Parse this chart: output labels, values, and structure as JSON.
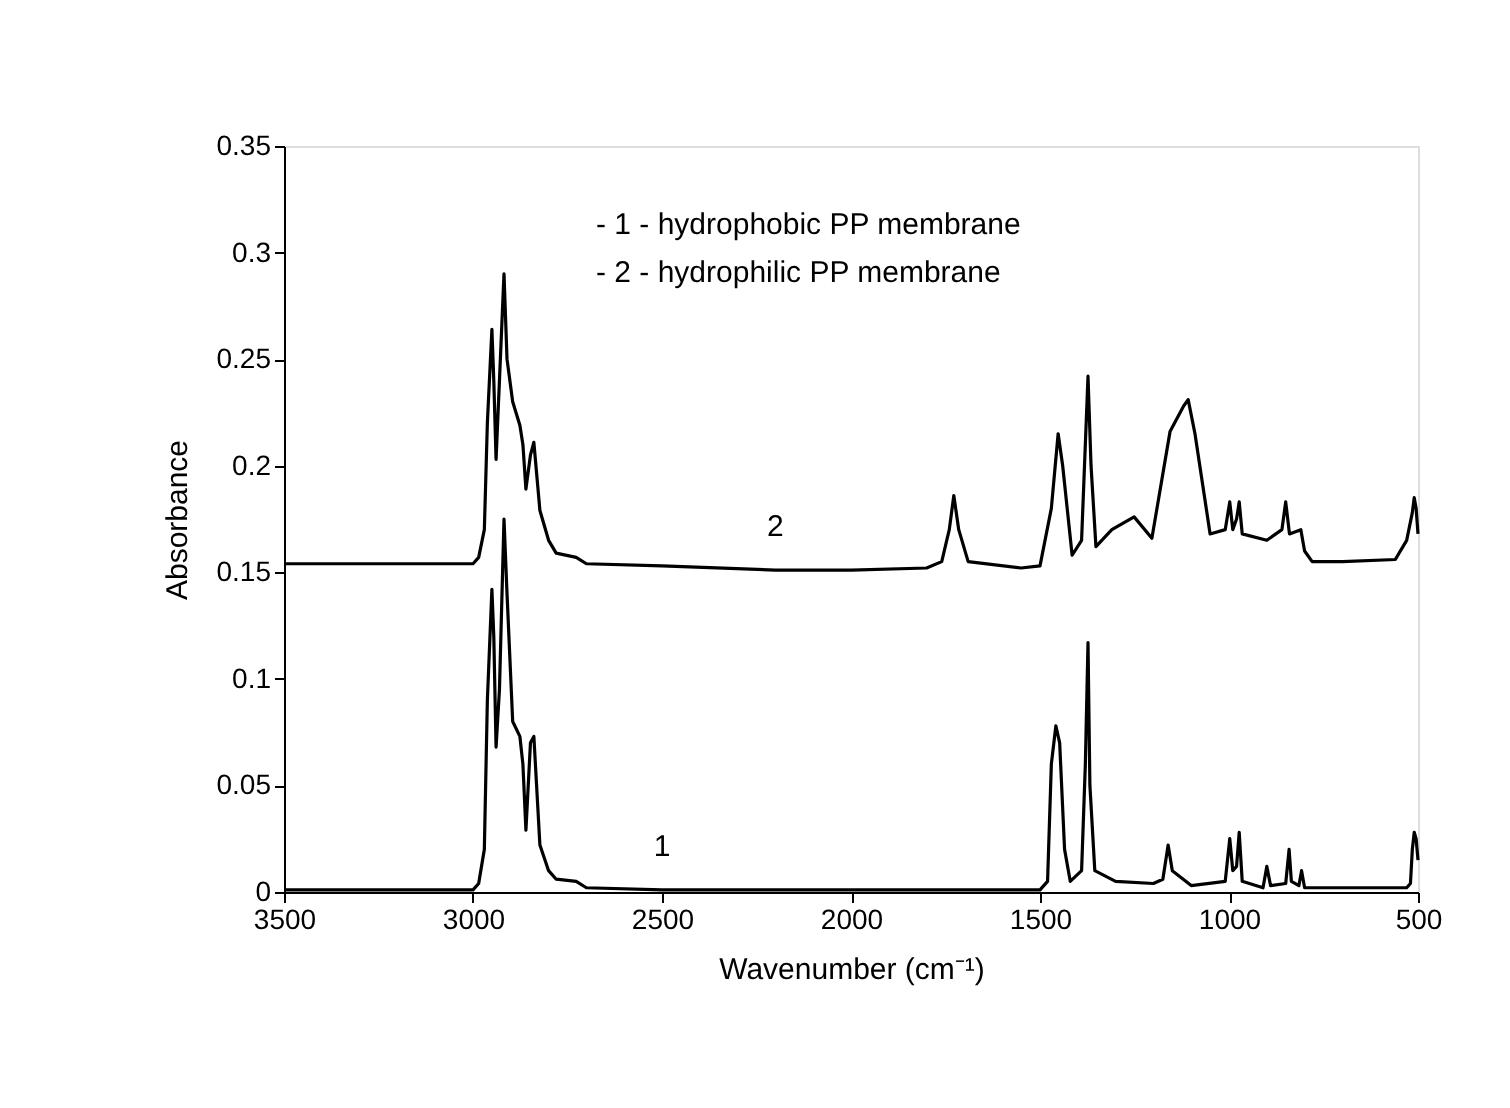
{
  "chart_data": {
    "type": "line",
    "xlabel": "Wavenumber (cm⁻¹)",
    "ylabel": "Absorbance",
    "xlim": [
      3500,
      500
    ],
    "xticks": [
      3500,
      3000,
      2500,
      2000,
      1500,
      1000,
      500
    ],
    "ylim": [
      0,
      0.35
    ],
    "yticks": [
      0,
      0.05,
      0.1,
      0.15,
      0.2,
      0.25,
      0.3,
      0.35
    ],
    "grid": false,
    "marker": "none",
    "line_style": "solid",
    "series": [
      {
        "name": "1",
        "color": "#000000",
        "x": [
          3500,
          3000,
          2985,
          2970,
          2962,
          2950,
          2945,
          2939,
          2930,
          2918,
          2910,
          2895,
          2876,
          2868,
          2860,
          2848,
          2839,
          2823,
          2800,
          2780,
          2727,
          2700,
          2500,
          2000,
          1500,
          1480,
          1470,
          1458,
          1448,
          1435,
          1420,
          1390,
          1380,
          1373,
          1368,
          1355,
          1300,
          1200,
          1175,
          1161,
          1150,
          1100,
          1010,
          998,
          990,
          980,
          973,
          965,
          910,
          900,
          890,
          850,
          841,
          835,
          815,
          808,
          800,
          530,
          520,
          515,
          510,
          505,
          500
        ],
        "values": [
          0.001,
          0.001,
          0.004,
          0.02,
          0.09,
          0.142,
          0.12,
          0.068,
          0.095,
          0.175,
          0.14,
          0.08,
          0.073,
          0.06,
          0.029,
          0.07,
          0.073,
          0.022,
          0.01,
          0.006,
          0.005,
          0.002,
          0.001,
          0.001,
          0.001,
          0.005,
          0.06,
          0.078,
          0.07,
          0.02,
          0.005,
          0.01,
          0.06,
          0.117,
          0.05,
          0.01,
          0.005,
          0.004,
          0.006,
          0.022,
          0.01,
          0.003,
          0.005,
          0.025,
          0.01,
          0.012,
          0.028,
          0.005,
          0.002,
          0.012,
          0.003,
          0.004,
          0.02,
          0.005,
          0.003,
          0.01,
          0.002,
          0.002,
          0.004,
          0.02,
          0.028,
          0.025,
          0.015
        ]
      },
      {
        "name": "2",
        "color": "#000000",
        "x": [
          3500,
          3000,
          2985,
          2970,
          2962,
          2950,
          2945,
          2939,
          2930,
          2918,
          2910,
          2895,
          2876,
          2868,
          2860,
          2848,
          2839,
          2823,
          2800,
          2780,
          2727,
          2700,
          2500,
          2200,
          2000,
          1800,
          1760,
          1740,
          1728,
          1715,
          1690,
          1550,
          1500,
          1470,
          1452,
          1440,
          1415,
          1390,
          1373,
          1365,
          1352,
          1310,
          1251,
          1204,
          1156,
          1120,
          1108,
          1090,
          1050,
          1010,
          998,
          990,
          980,
          973,
          965,
          900,
          860,
          850,
          840,
          810,
          800,
          780,
          700,
          560,
          530,
          515,
          510,
          505,
          500
        ],
        "values": [
          0.154,
          0.154,
          0.157,
          0.17,
          0.22,
          0.264,
          0.24,
          0.203,
          0.24,
          0.29,
          0.25,
          0.23,
          0.219,
          0.21,
          0.189,
          0.205,
          0.211,
          0.179,
          0.165,
          0.159,
          0.157,
          0.154,
          0.153,
          0.151,
          0.151,
          0.152,
          0.155,
          0.17,
          0.186,
          0.17,
          0.155,
          0.152,
          0.153,
          0.18,
          0.215,
          0.2,
          0.158,
          0.165,
          0.242,
          0.2,
          0.162,
          0.17,
          0.176,
          0.166,
          0.216,
          0.228,
          0.231,
          0.215,
          0.168,
          0.17,
          0.183,
          0.17,
          0.175,
          0.183,
          0.168,
          0.165,
          0.17,
          0.183,
          0.168,
          0.17,
          0.16,
          0.155,
          0.155,
          0.156,
          0.165,
          0.178,
          0.185,
          0.18,
          0.168
        ]
      }
    ],
    "annotations": [
      "- 1 -  hydrophobic PP membrane",
      "- 2 -  hydrophilic PP membrane"
    ]
  }
}
